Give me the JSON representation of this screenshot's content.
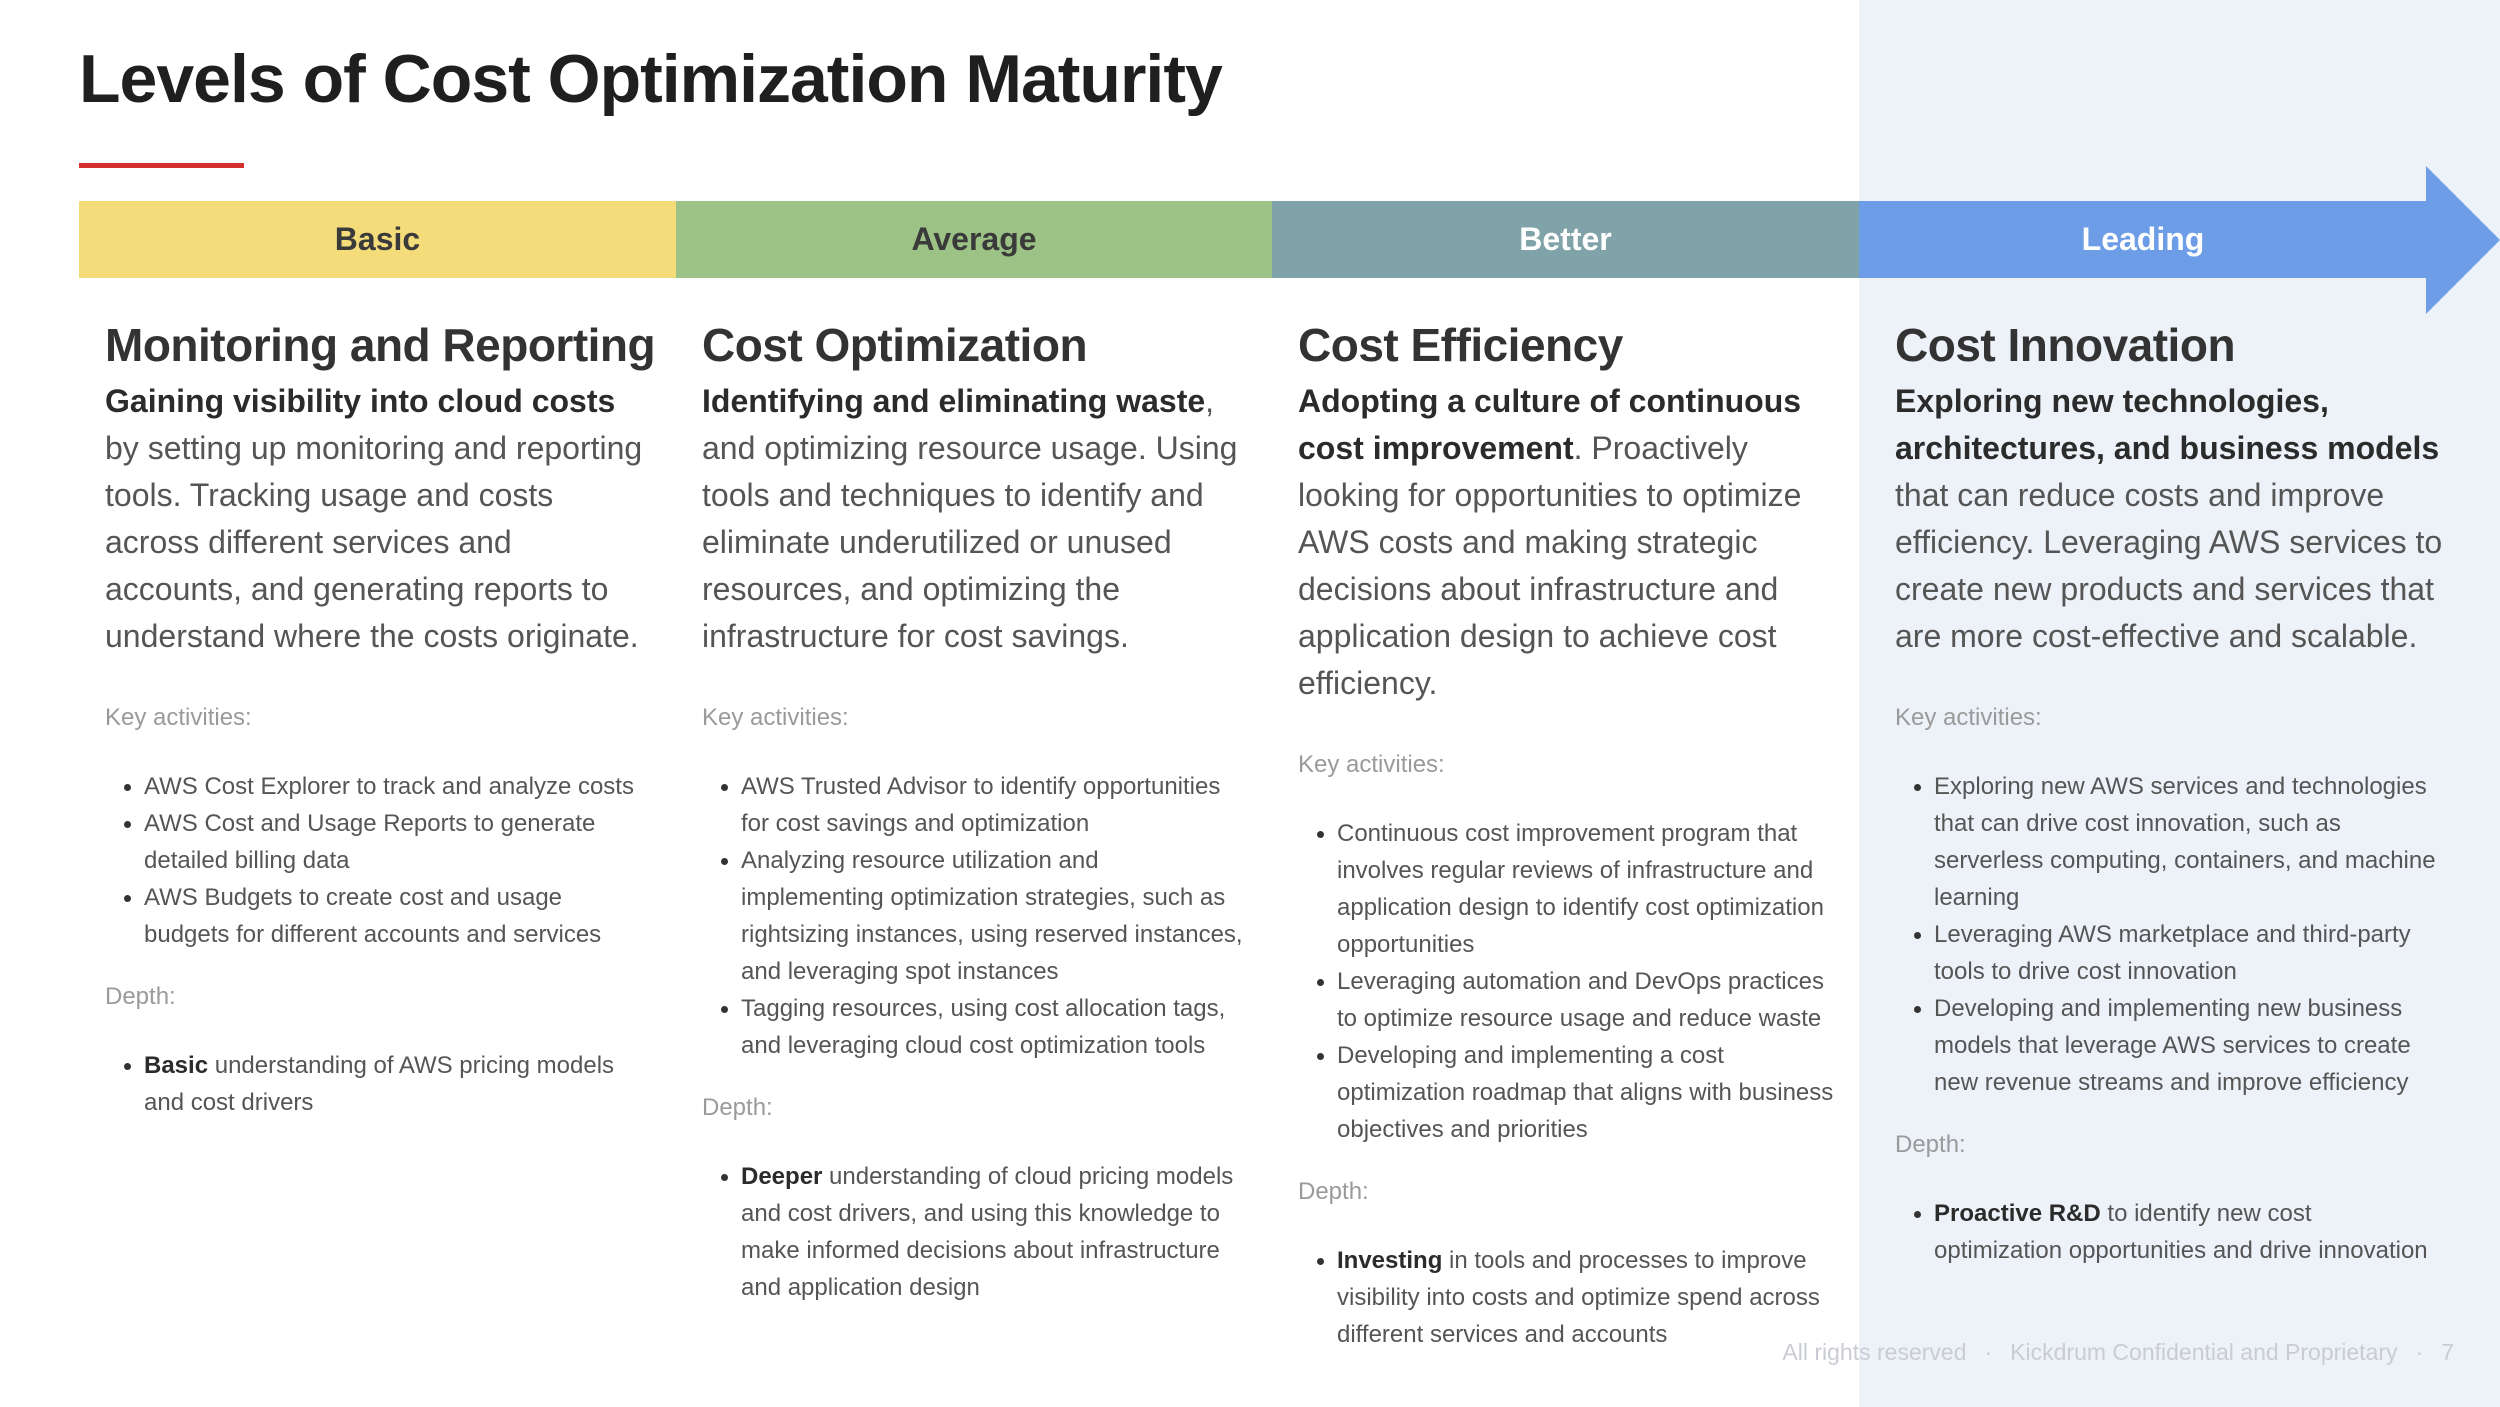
{
  "title": "Levels of Cost Optimization Maturity",
  "colors": {
    "accent_rule": "#d32f2f",
    "basic": "#f5dc7a",
    "average": "#9dc285",
    "better": "#80a3aa",
    "leading": "#6e9de8",
    "panel": "#edf1f8"
  },
  "stages": [
    {
      "label": "Basic"
    },
    {
      "label": "Average"
    },
    {
      "label": "Better"
    },
    {
      "label": "Leading"
    }
  ],
  "columns": [
    {
      "heading": "Monitoring and Reporting",
      "desc_bold": "Gaining visibility into cloud costs",
      "desc_rest": " by setting up monitoring and reporting tools. Tracking usage and costs across different services and accounts, and generating reports to understand where the costs originate.",
      "key_label": "Key activities:",
      "activities": [
        "AWS Cost Explorer to track and analyze costs",
        "AWS Cost and Usage Reports to generate detailed billing data",
        "AWS Budgets to create cost and usage budgets for different accounts and services"
      ],
      "depth_label": "Depth:",
      "depth_bold": "Basic",
      "depth_rest": " understanding of AWS pricing models and cost drivers"
    },
    {
      "heading": "Cost Optimization",
      "desc_bold": "Identifying and eliminating waste",
      "desc_rest": ", and optimizing resource usage. Using tools and techniques to identify and eliminate underutilized or unused resources, and optimizing the infrastructure for cost savings.",
      "key_label": "Key activities:",
      "activities": [
        "AWS Trusted Advisor to identify opportunities for cost savings and optimization",
        "Analyzing resource utilization and implementing optimization strategies, such as rightsizing instances, using reserved instances, and leveraging spot instances",
        "Tagging resources, using cost allocation tags, and leveraging cloud cost optimization tools"
      ],
      "depth_label": "Depth:",
      "depth_bold": "Deeper",
      "depth_rest": " understanding of cloud pricing models and cost drivers, and using this knowledge to make informed decisions about infrastructure and application design"
    },
    {
      "heading": "Cost Efficiency",
      "desc_bold": "Adopting a culture of continuous cost improvement",
      "desc_rest": ". Proactively looking for opportunities to optimize AWS costs and making strategic decisions about infrastructure and application design to achieve cost efficiency.",
      "key_label": "Key activities:",
      "activities": [
        "Continuous cost improvement program that involves regular reviews of infrastructure and application design to identify cost optimization opportunities",
        "Leveraging automation and DevOps practices to optimize resource usage and reduce waste",
        "Developing and implementing a cost optimization roadmap that aligns with business objectives and priorities"
      ],
      "depth_label": "Depth:",
      "depth_bold": "Investing",
      "depth_rest": " in tools and processes to improve visibility into costs and optimize spend across different services and accounts"
    },
    {
      "heading": "Cost Innovation",
      "desc_bold": "Exploring new technologies, architectures, and business models",
      "desc_rest": " that can reduce costs and improve efficiency. Leveraging AWS services to create new products and services that are more cost-effective and scalable.",
      "key_label": "Key activities:",
      "activities": [
        "Exploring new AWS services and technologies that can drive cost innovation, such as serverless computing, containers, and machine learning",
        "Leveraging AWS marketplace and third-party tools to drive cost innovation",
        "Developing and implementing new business models that leverage AWS services to create new revenue streams and improve efficiency"
      ],
      "depth_label": "Depth:",
      "depth_bold": "Proactive R&D",
      "depth_rest": " to identify new cost optimization opportunities and drive innovation"
    }
  ],
  "footer": {
    "rights": "All rights reserved",
    "separator": "·",
    "confidential": "Kickdrum Confidential and Proprietary",
    "page": "7"
  }
}
